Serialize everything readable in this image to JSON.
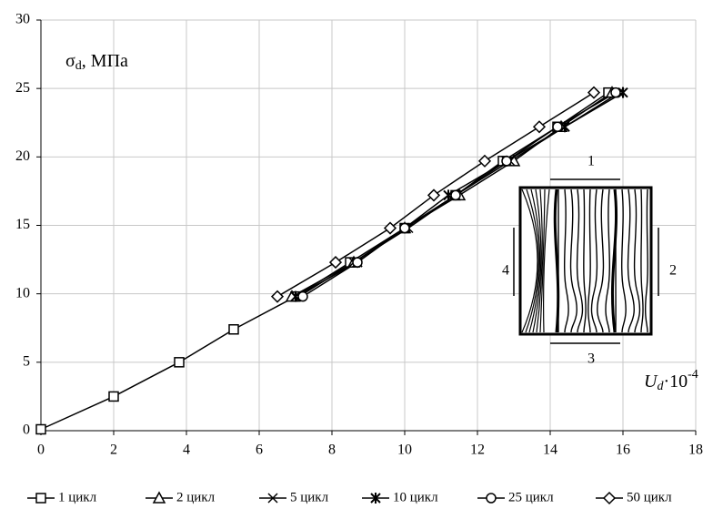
{
  "chart_data": {
    "type": "line",
    "y_label": {
      "symbol": "σ",
      "sub": "d",
      "unit": ", МПа"
    },
    "x_label": {
      "symbol": "U",
      "sub": "d",
      "factor": "·10",
      "exp": "-4"
    },
    "inset_labels": [
      "1",
      "2",
      "3",
      "4"
    ],
    "xlim": [
      0,
      18
    ],
    "xticks": [
      0,
      2,
      4,
      6,
      8,
      10,
      12,
      14,
      16,
      18
    ],
    "ylim": [
      0,
      30
    ],
    "yticks": [
      0,
      5,
      10,
      15,
      20,
      25,
      30
    ],
    "grid": true,
    "series": [
      {
        "name": "1 цикл",
        "color": "#000000",
        "marker": "square",
        "x": [
          0,
          2,
          3.8,
          5.3,
          7.0,
          8.5,
          10.0,
          11.4,
          12.7,
          14.2,
          15.6
        ],
        "values": [
          0.1,
          2.5,
          5.0,
          7.4,
          9.8,
          12.3,
          14.8,
          17.2,
          19.7,
          22.2,
          24.7
        ]
      },
      {
        "name": "2 цикл",
        "color": "#000000",
        "marker": "triangle",
        "x": [
          6.9,
          8.6,
          10.0,
          11.5,
          13.0,
          14.3,
          15.7
        ],
        "values": [
          9.8,
          12.3,
          14.8,
          17.2,
          19.7,
          22.2,
          24.7
        ]
      },
      {
        "name": "5 цикл",
        "color": "#000000",
        "marker": "cross",
        "x": [
          7.1,
          8.6,
          10.1,
          11.4,
          12.9,
          14.4,
          15.9
        ],
        "values": [
          9.8,
          12.3,
          14.8,
          17.2,
          19.7,
          22.2,
          24.7
        ]
      },
      {
        "name": "10 цикл",
        "color": "#000000",
        "marker": "star",
        "x": [
          7.0,
          8.7,
          10.0,
          11.2,
          12.8,
          14.4,
          16.0
        ],
        "values": [
          9.8,
          12.3,
          14.8,
          17.2,
          19.7,
          22.2,
          24.7
        ]
      },
      {
        "name": "25 цикл",
        "color": "#000000",
        "marker": "circle",
        "x": [
          7.2,
          8.7,
          10.0,
          11.4,
          12.8,
          14.2,
          15.8
        ],
        "values": [
          9.8,
          12.3,
          14.8,
          17.2,
          19.7,
          22.2,
          24.7
        ]
      },
      {
        "name": "50 цикл",
        "color": "#000000",
        "marker": "diamond",
        "x": [
          6.5,
          8.1,
          9.6,
          10.8,
          12.2,
          13.7,
          15.2
        ],
        "values": [
          9.8,
          12.3,
          14.8,
          17.2,
          19.7,
          22.2,
          24.7
        ]
      }
    ]
  }
}
